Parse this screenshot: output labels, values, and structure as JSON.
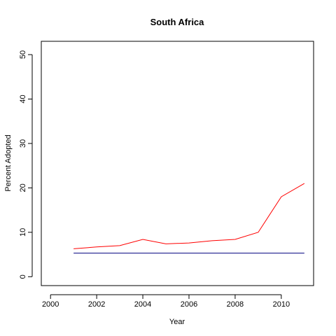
{
  "chart_data": {
    "type": "line",
    "title": "South Africa",
    "xlabel": "Year",
    "ylabel": "Percent Adopted",
    "xlim": [
      1999.6,
      2011.4
    ],
    "ylim": [
      -2,
      53
    ],
    "xticks": [
      2000,
      2002,
      2004,
      2006,
      2008,
      2010
    ],
    "yticks": [
      0,
      10,
      20,
      30,
      40,
      50
    ],
    "grid": false,
    "series": [
      {
        "color": "#ff0000",
        "x": [
          2001,
          2002,
          2003,
          2004,
          2005,
          2006,
          2007,
          2008,
          2009,
          2010,
          2011
        ],
        "y": [
          6.3,
          6.7,
          7.0,
          8.4,
          7.4,
          7.6,
          8.1,
          8.4,
          10.0,
          18.0,
          21.0
        ]
      },
      {
        "color": "#000080",
        "x": [
          2001,
          2002,
          2003,
          2004,
          2005,
          2006,
          2007,
          2008,
          2009,
          2010,
          2011
        ],
        "y": [
          5.3,
          5.3,
          5.3,
          5.3,
          5.3,
          5.3,
          5.3,
          5.3,
          5.3,
          5.3,
          5.3
        ]
      }
    ]
  }
}
